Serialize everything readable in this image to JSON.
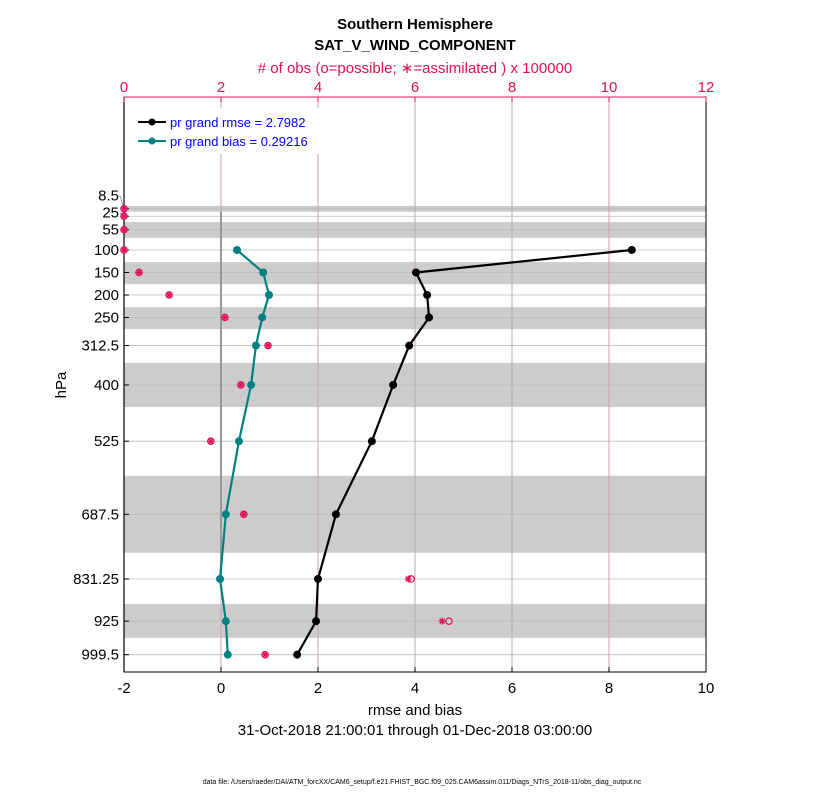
{
  "chart_data": {
    "type": "line",
    "title": "Southern Hemisphere",
    "subtitle": "SAT_V_WIND_COMPONENT",
    "top_axis_label": "# of obs (o=possible; ∗=assimilated ) x 100000",
    "xlabel": "rmse and bias",
    "ylabel": "hPa",
    "date_range": "31-Oct-2018 21:00:01 through 01-Dec-2018 03:00:00",
    "footnote": "data file: /Users/raeder/DAI/ATM_forcXX/CAM6_setup/f.e21.FHIST_BGC.f09_025.CAM6assim.011/Diags_NTrS_2018-11/obs_diag_output.nc",
    "xlim": [
      -2,
      10
    ],
    "top_xlim": [
      0,
      12
    ],
    "ylim": [
      -240,
      1038
    ],
    "xticks": [
      -2,
      0,
      2,
      4,
      6,
      8,
      10
    ],
    "top_xticks": [
      0,
      2,
      4,
      6,
      8,
      10,
      12
    ],
    "levels": [
      8.5,
      25,
      55,
      100,
      150,
      200,
      250,
      312.5,
      400,
      525,
      687.5,
      831.25,
      925,
      999.5
    ],
    "level_labels": [
      "8.5",
      "25",
      "55",
      "100",
      "150",
      "200",
      "250",
      "312.5",
      "400",
      "525",
      "687.5",
      "831.25",
      "925",
      "999.5"
    ],
    "bands": [
      [
        2,
        15
      ],
      [
        38,
        73
      ],
      [
        127,
        176
      ],
      [
        227,
        276
      ],
      [
        351,
        449
      ],
      [
        602,
        773
      ],
      [
        887,
        962
      ]
    ],
    "series": [
      {
        "name": "pr grand rmse = 2.7982",
        "color": "#000000",
        "marker": "star",
        "levels": [
          100,
          150,
          200,
          250,
          312.5,
          400,
          525,
          687.5,
          831.25,
          925,
          999.5
        ],
        "values": [
          8.47,
          4.02,
          4.25,
          4.29,
          3.88,
          3.55,
          3.11,
          2.37,
          2.0,
          1.96,
          1.57
        ]
      },
      {
        "name": "pr grand bias = 0.29216",
        "color": "#008080",
        "marker": "circle",
        "levels": [
          100,
          150,
          200,
          250,
          312.5,
          400,
          525,
          687.5,
          831.25,
          925,
          999.5
        ],
        "values": [
          0.33,
          0.87,
          0.99,
          0.85,
          0.72,
          0.62,
          0.37,
          0.1,
          -0.02,
          0.1,
          0.14
        ]
      }
    ],
    "obs": {
      "color": "#e0105a",
      "levels": [
        8.5,
        25,
        55,
        100,
        150,
        200,
        250,
        312.5,
        400,
        525,
        687.5,
        831.25,
        925,
        999.5
      ],
      "possible": [
        0,
        0,
        0,
        0,
        0.31,
        0.93,
        2.08,
        2.97,
        2.41,
        1.79,
        2.47,
        5.92,
        6.7,
        2.91
      ],
      "assimilated": [
        0,
        0,
        0,
        0,
        0.31,
        0.93,
        2.08,
        2.97,
        2.41,
        1.79,
        2.47,
        5.86,
        6.56,
        2.91
      ]
    }
  }
}
